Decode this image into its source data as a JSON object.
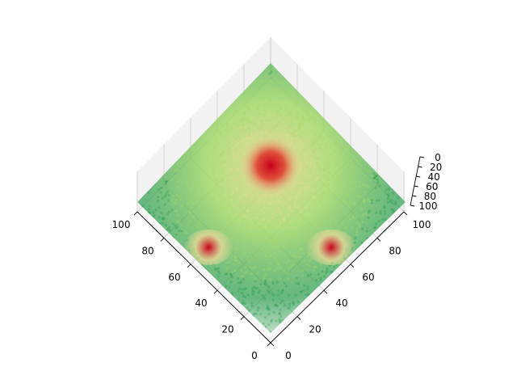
{
  "chart_data": {
    "type": "scatter",
    "projection": "3d",
    "view": "top-down, rotated 45 degrees",
    "title": "",
    "xlabel": "",
    "ylabel": "",
    "zlabel": "",
    "xlim": [
      0,
      100
    ],
    "ylim": [
      0,
      100
    ],
    "zlim": [
      0,
      100
    ],
    "x_ticks": [
      "0",
      "20",
      "40",
      "60",
      "80",
      "100"
    ],
    "y_ticks": [
      "0",
      "20",
      "40",
      "60",
      "80",
      "100"
    ],
    "z_ticks": [
      "0",
      "20",
      "40",
      "60",
      "80",
      "100"
    ],
    "grid": true,
    "pane_color": "#f2f2f2",
    "colormap": [
      "#1a9641",
      "#a6d96a",
      "#e8d999",
      "#d7191c"
    ],
    "point_alpha": 0.1,
    "description_values": {
      "distribution": "dense uniform cube cloud",
      "hotspots": [
        {
          "x": 50,
          "y": 50,
          "z": 100
        },
        {
          "x": 100,
          "y": 0,
          "z": 50
        },
        {
          "x": 0,
          "y": 100,
          "z": 50
        }
      ]
    }
  }
}
